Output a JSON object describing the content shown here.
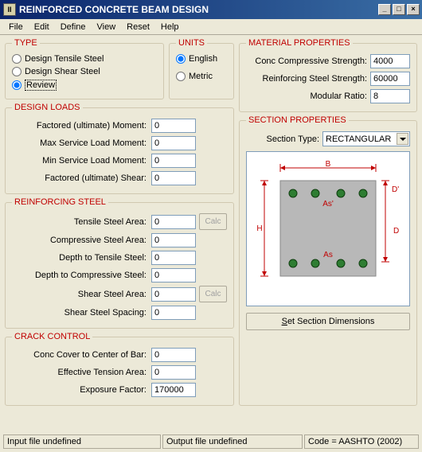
{
  "window": {
    "title": "REINFORCED CONCRETE BEAM DESIGN",
    "icon_text": "II"
  },
  "menus": [
    "File",
    "Edit",
    "Define",
    "View",
    "Reset",
    "Help"
  ],
  "type": {
    "legend": "TYPE",
    "options": {
      "tensile": "Design Tensile Steel",
      "shear": "Design Shear Steel",
      "review": "Review"
    },
    "selected": "review"
  },
  "units": {
    "legend": "UNITS",
    "options": {
      "english": "English",
      "metric": "Metric"
    },
    "selected": "english"
  },
  "design_loads": {
    "legend": "DESIGN LOADS",
    "rows": {
      "fum": {
        "label": "Factored (ultimate) Moment:",
        "value": "0"
      },
      "mslm": {
        "label": "Max Service Load Moment:",
        "value": "0"
      },
      "minsl": {
        "label": "Min Service Load Moment:",
        "value": "0"
      },
      "fus": {
        "label": "Factored (ultimate) Shear:",
        "value": "0"
      }
    }
  },
  "reinforcing": {
    "legend": "REINFORCING STEEL",
    "rows": {
      "tsa": {
        "label": "Tensile Steel Area:",
        "value": "0",
        "calc": true
      },
      "csa": {
        "label": "Compressive Steel Area:",
        "value": "0"
      },
      "dts": {
        "label": "Depth to Tensile Steel:",
        "value": "0"
      },
      "dcs": {
        "label": "Depth to Compressive Steel:",
        "value": "0"
      },
      "ssa": {
        "label": "Shear Steel Area:",
        "value": "0",
        "calc": true
      },
      "sss": {
        "label": "Shear Steel Spacing:",
        "value": "0"
      }
    },
    "calc_label": "Calc"
  },
  "crack": {
    "legend": "CRACK CONTROL",
    "rows": {
      "cover": {
        "label": "Conc Cover to Center of Bar:",
        "value": "0"
      },
      "eta": {
        "label": "Effective Tension Area:",
        "value": "0"
      },
      "ef": {
        "label": "Exposure Factor:",
        "value": "170000"
      }
    }
  },
  "material": {
    "legend": "MATERIAL PROPERTIES",
    "rows": {
      "ccs": {
        "label": "Conc Compressive Strength:",
        "value": "4000"
      },
      "rss": {
        "label": "Reinforcing Steel Strength:",
        "value": "60000"
      },
      "mr": {
        "label": "Modular Ratio:",
        "value": "8"
      }
    }
  },
  "section": {
    "legend": "SECTION PROPERTIES",
    "type_label": "Section Type:",
    "type_value": "RECTANGULAR",
    "button_label_parts": [
      "S",
      "et Section Dimensions"
    ]
  },
  "diagram": {
    "dim_color": "#c00000",
    "beam_fill": "#b8b8b8",
    "beam_border": "#888",
    "rebar_fill": "#2e7d32",
    "rebar_stroke": "#0d3d0d",
    "labels": {
      "B": "B",
      "H": "H",
      "D": "D",
      "Dp": "D'",
      "Asp": "As'",
      "As": "As"
    }
  },
  "status": {
    "input": "Input file undefined",
    "output": "Output file undefined",
    "code": "Code = AASHTO (2002)"
  }
}
